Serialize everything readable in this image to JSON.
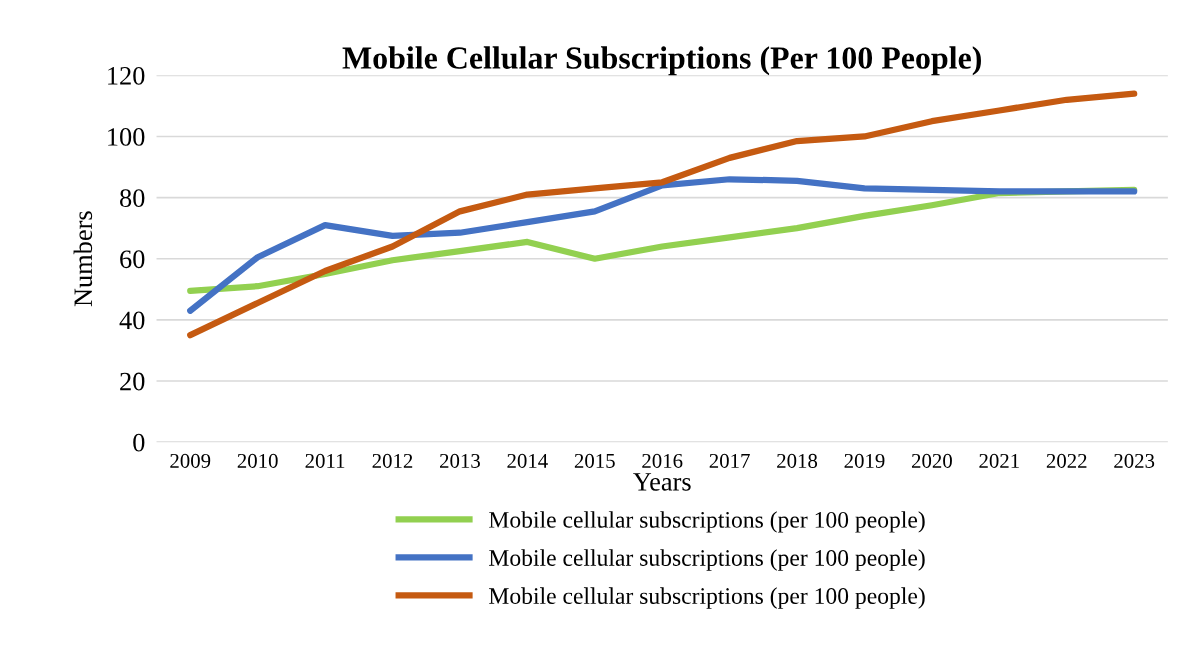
{
  "chart_data": {
    "type": "line",
    "title": "Mobile Cellular Subscriptions (Per 100 People)",
    "xlabel": "Years",
    "ylabel": "Numbers",
    "categories": [
      "2009",
      "2010",
      "2011",
      "2012",
      "2013",
      "2014",
      "2015",
      "2016",
      "2017",
      "2018",
      "2019",
      "2020",
      "2021",
      "2022",
      "2023"
    ],
    "series": [
      {
        "name": "Mobile cellular subscriptions (per 100 people)",
        "color": "#92d050",
        "values": [
          49.5,
          51,
          55,
          59.5,
          62.5,
          65.5,
          60,
          64,
          67,
          70,
          74,
          77.5,
          81.5,
          82,
          82.5
        ]
      },
      {
        "name": "Mobile cellular subscriptions (per 100 people)",
        "color": "#4472c4",
        "values": [
          43,
          60.5,
          71,
          67.5,
          68.5,
          72,
          75.5,
          84,
          86,
          85.5,
          83,
          82.5,
          82,
          82,
          82
        ]
      },
      {
        "name": "Mobile cellular subscriptions (per 100 people)",
        "color": "#c55a11",
        "values": [
          35,
          45.5,
          56,
          64,
          75.5,
          81,
          83,
          85,
          93,
          98.5,
          100,
          105,
          108.5,
          112,
          114
        ]
      }
    ],
    "ylim": [
      0,
      120
    ],
    "yticks": [
      0,
      20,
      40,
      60,
      80,
      100,
      120
    ],
    "grid": "y",
    "legend": "bottom",
    "marker": "none",
    "line_style": "solid"
  }
}
